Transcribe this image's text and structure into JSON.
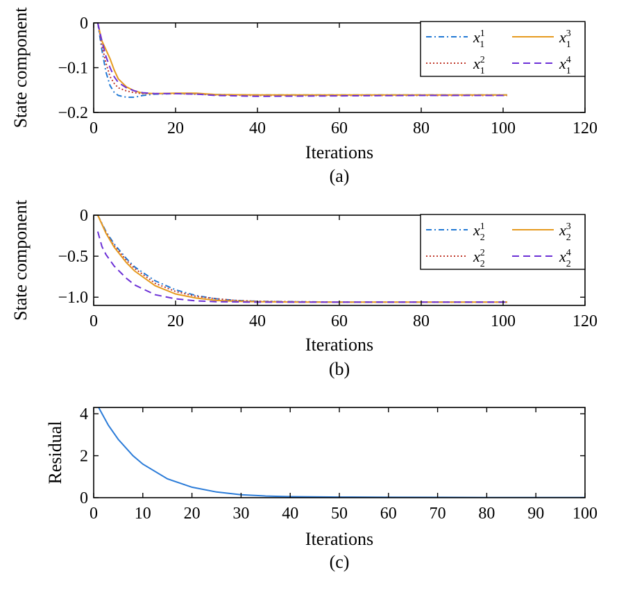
{
  "chart_data": [
    {
      "id": "a",
      "type": "line",
      "caption": "(a)",
      "xlabel": "Iterations",
      "ylabel": "State component",
      "xlim": [
        0,
        120
      ],
      "ylim": [
        -0.2,
        0
      ],
      "xticks": [
        0,
        20,
        40,
        60,
        80,
        100,
        120
      ],
      "yticks": [
        0,
        -0.1,
        -0.2
      ],
      "ytick_labels": [
        "0",
        "−0.1",
        "−0.2"
      ],
      "grid": false,
      "legend_position": "top-right",
      "series": [
        {
          "name": "x_1^1",
          "color": "#1f77d4",
          "dash": "dashdot",
          "x": [
            1,
            2,
            3,
            4,
            5,
            6,
            8,
            10,
            12,
            15,
            20,
            25,
            30,
            40,
            60,
            80,
            101
          ],
          "y": [
            0,
            -0.06,
            -0.11,
            -0.14,
            -0.155,
            -0.162,
            -0.166,
            -0.166,
            -0.162,
            -0.159,
            -0.158,
            -0.158,
            -0.16,
            -0.161,
            -0.161,
            -0.161,
            -0.161
          ]
        },
        {
          "name": "x_1^2",
          "color": "#c0392b",
          "dash": "dot",
          "x": [
            1,
            2,
            3,
            4,
            5,
            6,
            8,
            10,
            12,
            15,
            20,
            25,
            30,
            40,
            60,
            80,
            101
          ],
          "y": [
            0,
            -0.05,
            -0.09,
            -0.12,
            -0.135,
            -0.145,
            -0.152,
            -0.156,
            -0.158,
            -0.158,
            -0.158,
            -0.159,
            -0.161,
            -0.162,
            -0.162,
            -0.162,
            -0.162
          ]
        },
        {
          "name": "x_1^3",
          "color": "#e69a1e",
          "dash": "solid",
          "x": [
            1,
            2,
            3,
            4,
            5,
            6,
            8,
            10,
            12,
            15,
            20,
            25,
            30,
            40,
            60,
            80,
            101
          ],
          "y": [
            0,
            -0.04,
            -0.06,
            -0.08,
            -0.105,
            -0.125,
            -0.143,
            -0.152,
            -0.157,
            -0.158,
            -0.157,
            -0.157,
            -0.16,
            -0.161,
            -0.161,
            -0.161,
            -0.161
          ]
        },
        {
          "name": "x_1^4",
          "color": "#6b2fd6",
          "dash": "dash",
          "x": [
            1,
            2,
            3,
            4,
            5,
            6,
            8,
            10,
            12,
            15,
            20,
            25,
            30,
            40,
            60,
            80,
            101
          ],
          "y": [
            0,
            -0.04,
            -0.075,
            -0.1,
            -0.12,
            -0.133,
            -0.145,
            -0.152,
            -0.156,
            -0.158,
            -0.158,
            -0.159,
            -0.162,
            -0.164,
            -0.163,
            -0.162,
            -0.162
          ]
        }
      ]
    },
    {
      "id": "b",
      "type": "line",
      "caption": "(b)",
      "xlabel": "Iterations",
      "ylabel": "State component",
      "xlim": [
        0,
        120
      ],
      "ylim": [
        -1.1,
        0
      ],
      "xticks": [
        0,
        20,
        40,
        60,
        80,
        100,
        120
      ],
      "yticks": [
        0,
        -0.5,
        -1.0
      ],
      "ytick_labels": [
        "0",
        "−0.5",
        "−1.0"
      ],
      "grid": false,
      "legend_position": "top-right",
      "series": [
        {
          "name": "x_2^1",
          "color": "#1f77d4",
          "dash": "dashdot",
          "x": [
            1,
            3,
            5,
            8,
            10,
            15,
            20,
            25,
            30,
            35,
            40,
            50,
            60,
            80,
            101
          ],
          "y": [
            0,
            -0.2,
            -0.35,
            -0.53,
            -0.63,
            -0.8,
            -0.91,
            -0.98,
            -1.02,
            -1.04,
            -1.05,
            -1.055,
            -1.06,
            -1.06,
            -1.06
          ]
        },
        {
          "name": "x_2^2",
          "color": "#c0392b",
          "dash": "dot",
          "x": [
            1,
            3,
            5,
            8,
            10,
            15,
            20,
            25,
            30,
            35,
            40,
            50,
            60,
            80,
            101
          ],
          "y": [
            0,
            -0.21,
            -0.37,
            -0.55,
            -0.65,
            -0.83,
            -0.93,
            -0.99,
            -1.02,
            -1.04,
            -1.05,
            -1.055,
            -1.06,
            -1.06,
            -1.06
          ]
        },
        {
          "name": "x_2^3",
          "color": "#e69a1e",
          "dash": "solid",
          "x": [
            1,
            3,
            5,
            8,
            10,
            15,
            20,
            25,
            30,
            35,
            40,
            50,
            60,
            80,
            101
          ],
          "y": [
            0,
            -0.22,
            -0.39,
            -0.58,
            -0.68,
            -0.86,
            -0.96,
            -1.01,
            -1.04,
            -1.05,
            -1.055,
            -1.06,
            -1.06,
            -1.06,
            -1.06
          ]
        },
        {
          "name": "x_2^4",
          "color": "#6b2fd6",
          "dash": "dash",
          "x": [
            1,
            2,
            3,
            5,
            8,
            10,
            15,
            20,
            25,
            30,
            40,
            50,
            60,
            80,
            101
          ],
          "y": [
            -0.2,
            -0.38,
            -0.48,
            -0.62,
            -0.77,
            -0.85,
            -0.97,
            -1.02,
            -1.045,
            -1.055,
            -1.06,
            -1.06,
            -1.06,
            -1.06,
            -1.06
          ]
        }
      ]
    },
    {
      "id": "c",
      "type": "line",
      "caption": "(c)",
      "xlabel": "Iterations",
      "ylabel": "Residual",
      "xlim": [
        0,
        100
      ],
      "ylim": [
        0,
        4.3
      ],
      "xticks": [
        0,
        10,
        20,
        30,
        40,
        50,
        60,
        70,
        80,
        90,
        100
      ],
      "yticks": [
        0,
        2,
        4
      ],
      "ytick_labels": [
        "0",
        "2",
        "4"
      ],
      "grid": false,
      "series": [
        {
          "name": "",
          "color": "#2a7bd8",
          "dash": "solid",
          "x": [
            1,
            3,
            5,
            8,
            10,
            15,
            20,
            25,
            30,
            35,
            40,
            50,
            60,
            70,
            80,
            90,
            100
          ],
          "y": [
            4.3,
            3.45,
            2.78,
            2.0,
            1.6,
            0.9,
            0.5,
            0.27,
            0.14,
            0.08,
            0.05,
            0.03,
            0.02,
            0.015,
            0.01,
            0.01,
            0.01
          ]
        }
      ]
    }
  ]
}
